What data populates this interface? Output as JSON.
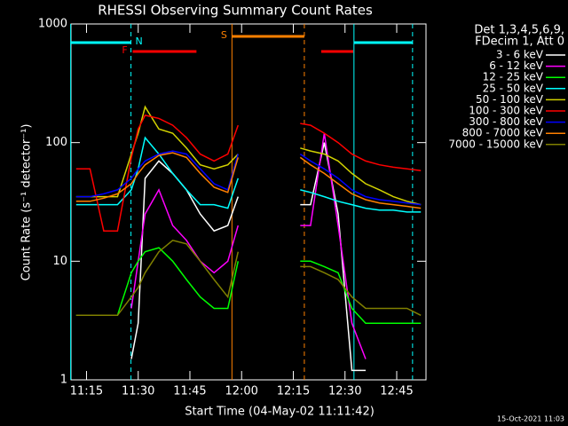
{
  "chart_data": {
    "type": "line",
    "title": "RHESSI Observing Summary Count Rates",
    "x_label": "Start Time (04-May-02 11:11:42)",
    "y_label": "Count Rate (s⁻¹ detector⁻¹)",
    "legend_header": [
      "Det 1,3,4,5,6,9,",
      "FDecim 1, Att 0"
    ],
    "footer": "15-Oct-2021 11:03",
    "log_y": true,
    "xlim": [
      670.5,
      773.5
    ],
    "ylim": [
      1,
      1000
    ],
    "xticks": [
      {
        "value": 675,
        "label": "11:15"
      },
      {
        "value": 690,
        "label": "11:30"
      },
      {
        "value": 705,
        "label": "11:45"
      },
      {
        "value": 720,
        "label": "12:00"
      },
      {
        "value": 735,
        "label": "12:15"
      },
      {
        "value": 750,
        "label": "12:30"
      },
      {
        "value": 765,
        "label": "12:45"
      }
    ],
    "yticks": [
      1,
      10,
      100,
      1000
    ],
    "x": [
      672,
      676,
      680,
      684,
      688,
      690,
      692,
      696,
      700,
      704,
      708,
      712,
      716,
      719,
      728,
      737,
      740,
      744,
      748,
      752,
      756,
      760,
      764,
      768,
      772
    ],
    "series": [
      {
        "name": "3 - 6 keV",
        "color": "#ffffff",
        "values": [
          null,
          null,
          null,
          null,
          1.5,
          3,
          50,
          70,
          55,
          40,
          25,
          18,
          20,
          35,
          null,
          30,
          30,
          100,
          25,
          1.2,
          1.2,
          null,
          null,
          null,
          null
        ]
      },
      {
        "name": "6 - 12 keV",
        "color": "#ff00ff",
        "values": [
          null,
          null,
          null,
          null,
          4,
          10,
          25,
          40,
          20,
          15,
          10,
          8,
          10,
          20,
          null,
          20,
          20,
          120,
          20,
          3,
          1.5,
          null,
          null,
          null,
          null
        ]
      },
      {
        "name": "12 - 25 keV",
        "color": "#00ff00",
        "values": [
          3.5,
          3.5,
          3.5,
          3.5,
          8,
          10,
          12,
          13,
          10,
          7,
          5,
          4,
          4,
          10,
          null,
          10,
          10,
          9,
          8,
          4,
          3,
          3,
          3,
          3,
          3
        ]
      },
      {
        "name": "25 - 50 keV",
        "color": "#00ffff",
        "values": [
          30,
          30,
          30,
          30,
          40,
          60,
          110,
          80,
          55,
          40,
          30,
          30,
          28,
          50,
          null,
          40,
          38,
          35,
          32,
          30,
          28,
          27,
          27,
          26,
          26
        ]
      },
      {
        "name": "50 - 100 keV",
        "color": "#d2d200",
        "values": [
          35,
          35,
          35,
          35,
          80,
          120,
          200,
          130,
          120,
          90,
          65,
          60,
          65,
          80,
          null,
          90,
          85,
          80,
          70,
          55,
          45,
          40,
          35,
          32,
          30
        ]
      },
      {
        "name": "100 - 300 keV",
        "color": "#ff0000",
        "values": [
          60,
          60,
          18,
          18,
          75,
          130,
          170,
          160,
          140,
          110,
          80,
          70,
          80,
          140,
          null,
          145,
          140,
          120,
          100,
          80,
          70,
          65,
          62,
          60,
          58
        ]
      },
      {
        "name": "300 - 800 keV",
        "color": "#0000ff",
        "values": [
          35,
          35,
          37,
          40,
          50,
          60,
          70,
          80,
          85,
          80,
          60,
          45,
          40,
          80,
          null,
          80,
          70,
          60,
          50,
          40,
          35,
          33,
          32,
          31,
          30
        ]
      },
      {
        "name": "800 - 7000 keV",
        "color": "#ff8000",
        "values": [
          32,
          32,
          34,
          37,
          45,
          55,
          65,
          78,
          82,
          75,
          55,
          42,
          38,
          75,
          null,
          75,
          65,
          55,
          45,
          37,
          33,
          31,
          30,
          29,
          28
        ]
      },
      {
        "name": "7000 - 15000 keV",
        "color": "#808000",
        "values": [
          3.5,
          3.5,
          3.5,
          3.5,
          5,
          6,
          8,
          12,
          15,
          14,
          10,
          7,
          5,
          12,
          null,
          9,
          9,
          8,
          7,
          5,
          4,
          4,
          4,
          4,
          3.5
        ]
      }
    ],
    "intervals": [
      {
        "label": "N",
        "color": "#00ffff",
        "markers": true,
        "spans": [
          [
            670.4,
            687.9
          ],
          [
            752.6,
            769.6
          ]
        ]
      },
      {
        "label": "F",
        "color": "#ff0000",
        "markers": false,
        "spans": [
          [
            688.4,
            706.9
          ],
          [
            743.1,
            752.4
          ]
        ]
      },
      {
        "label": "S",
        "color": "#ff8000",
        "markers": true,
        "spans": [
          [
            717.2,
            738.2
          ]
        ]
      }
    ]
  }
}
